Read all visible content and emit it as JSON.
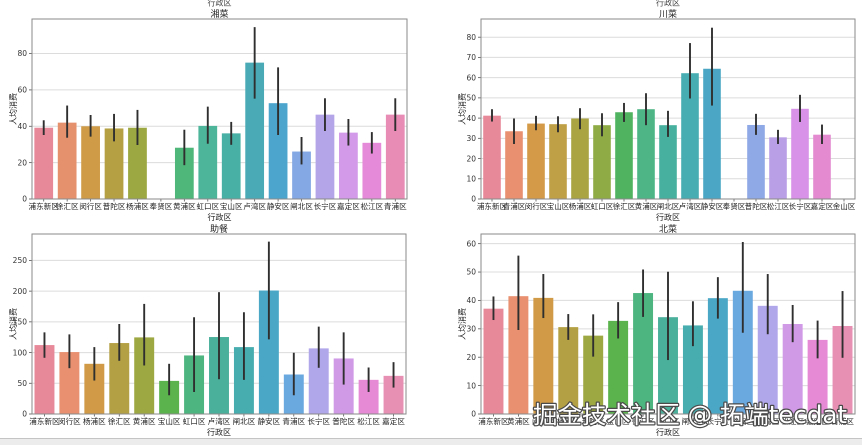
{
  "figure": {
    "cropped_above_xlabels": [
      "行政区",
      "行政区"
    ],
    "watermark": "掘金技术社区 @ 拓端tecdat"
  },
  "chart_data": [
    {
      "type": "bar",
      "title": "湘菜",
      "xlabel": "行政区",
      "ylabel": "人均消费",
      "categories": [
        "浦东新区",
        "徐汇区",
        "闵行区",
        "普陀区",
        "杨浦区",
        "奉贤区",
        "黄浦区",
        "虹口区",
        "宝山区",
        "卢湾区",
        "静安区",
        "闸北区",
        "长宁区",
        "嘉定区",
        "松江区",
        "青浦区"
      ],
      "values": [
        39.2,
        42.0,
        40.0,
        38.8,
        39.2,
        null,
        28.2,
        40.2,
        36.1,
        75.0,
        52.7,
        26.1,
        46.4,
        36.5,
        30.9,
        46.4
      ],
      "ci_low": [
        35.2,
        33.7,
        34.3,
        31.7,
        29.7,
        null,
        18.6,
        30.4,
        29.8,
        55.2,
        35.2,
        19.0,
        37.4,
        29.4,
        25.0,
        37.4
      ],
      "ci_high": [
        43.3,
        51.4,
        46.2,
        46.8,
        49.0,
        null,
        38.1,
        50.8,
        42.4,
        94.5,
        72.4,
        34.1,
        55.4,
        44.0,
        36.8,
        55.4
      ],
      "ylim": [
        0,
        99
      ],
      "yticks": [
        0,
        20,
        40,
        60,
        80
      ],
      "grid": true,
      "error_bars": true,
      "colors": [
        "#e8899a",
        "#e6916d",
        "#cf9b46",
        "#b5a043",
        "#9ca842",
        "#7fae45",
        "#4fb77a",
        "#4db59a",
        "#48b0a4",
        "#4aabb6",
        "#4ba5cd",
        "#84a8e3",
        "#b4a5e8",
        "#d29ae8",
        "#e58ad8",
        "#e88bb5"
      ]
    },
    {
      "type": "bar",
      "title": "川菜",
      "xlabel": "行政区",
      "ylabel": "人均消费",
      "categories": [
        "浦东新区",
        "青浦区",
        "闵行区",
        "宝山区",
        "杨浦区",
        "虹口区",
        "徐汇区",
        "黄浦区",
        "闸北区",
        "卢湾区",
        "静安区",
        "奉贤区",
        "普陀区",
        "松江区",
        "长宁区",
        "嘉定区",
        "金山区"
      ],
      "values": [
        41.2,
        33.5,
        37.3,
        37.0,
        39.8,
        36.5,
        42.9,
        44.4,
        36.5,
        62.2,
        64.4,
        null,
        36.6,
        30.5,
        44.6,
        31.8,
        null
      ],
      "ci_low": [
        38.3,
        27.2,
        34.0,
        33.0,
        34.5,
        31.0,
        38.1,
        36.5,
        30.7,
        49.7,
        46.2,
        null,
        31.7,
        27.2,
        38.1,
        27.2,
        null
      ],
      "ci_high": [
        44.4,
        39.8,
        41.1,
        40.9,
        44.9,
        42.4,
        47.5,
        52.3,
        43.6,
        77.1,
        84.7,
        null,
        42.1,
        34.2,
        51.5,
        36.8,
        null
      ],
      "ylim": [
        0,
        89
      ],
      "yticks": [
        0,
        10,
        20,
        30,
        40,
        50,
        60,
        70,
        80
      ],
      "grid": true,
      "error_bars": true,
      "colors": [
        "#e8899a",
        "#e8906f",
        "#d49a48",
        "#c0a046",
        "#aaa443",
        "#8fab45",
        "#4fb360",
        "#4db586",
        "#48b09e",
        "#48adb2",
        "#4aa6c4",
        "#5c9fd8",
        "#8fa8e6",
        "#b9a0e6",
        "#d892e8",
        "#e38ad0",
        "#e88ab0"
      ]
    },
    {
      "type": "bar",
      "title": "助餐",
      "xlabel": "行政区",
      "ylabel": "人均消费",
      "categories": [
        "浦东新区",
        "闵行区",
        "杨浦区",
        "徐汇区",
        "黄浦区",
        "宝山区",
        "虹口区",
        "卢湾区",
        "闸北区",
        "静安区",
        "青浦区",
        "长宁区",
        "普陀区",
        "松江区",
        "嘉定区"
      ],
      "values": [
        112.2,
        100.8,
        81.7,
        115.5,
        124.7,
        53.9,
        95.3,
        125.3,
        108.9,
        201.0,
        64.3,
        106.8,
        90.4,
        55.6,
        62.1
      ],
      "ci_low": [
        91.5,
        74.6,
        54.5,
        86.6,
        79.0,
        30.5,
        35.9,
        56.6,
        55.6,
        121.5,
        30.5,
        75.2,
        47.9,
        35.9,
        43.0
      ],
      "ci_high": [
        132.9,
        129.6,
        108.9,
        146.5,
        179.2,
        81.7,
        157.4,
        198.3,
        165.6,
        280.5,
        99.7,
        142.2,
        132.9,
        75.7,
        84.4
      ],
      "ylim": [
        0,
        293
      ],
      "yticks": [
        0,
        50,
        100,
        150,
        200,
        250
      ],
      "grid": true,
      "error_bars": true,
      "colors": [
        "#e8899a",
        "#e8906f",
        "#d09a46",
        "#b4a044",
        "#9ea842",
        "#5ab34c",
        "#4db57f",
        "#4ab09c",
        "#48adae",
        "#4aa8c6",
        "#6aa8e0",
        "#b0a6ea",
        "#d09ae6",
        "#e68ad6",
        "#e890b4"
      ]
    },
    {
      "type": "bar",
      "title": "北菜",
      "xlabel": "行政区",
      "ylabel": "人均消费",
      "categories": [
        "浦东新区",
        "黄浦区",
        "闵行区",
        "杨浦区",
        "普陀区",
        "宝山区",
        "徐汇区",
        "虹口区",
        "闸北区",
        "长宁区",
        "静安区",
        "卢湾区",
        "松江区",
        "嘉定区",
        "青浦区"
      ],
      "values": [
        37.1,
        41.5,
        40.9,
        30.6,
        27.6,
        32.8,
        42.6,
        34.1,
        31.2,
        40.8,
        43.4,
        38.1,
        31.7,
        26.1,
        31.0
      ],
      "ci_low": [
        33.1,
        29.6,
        33.8,
        26.1,
        20.2,
        26.6,
        34.2,
        19.0,
        23.9,
        33.6,
        28.6,
        28.1,
        25.3,
        19.6,
        19.8
      ],
      "ci_high": [
        41.4,
        55.8,
        49.3,
        35.2,
        35.1,
        39.4,
        50.9,
        50.1,
        39.7,
        48.2,
        60.6,
        49.3,
        38.4,
        32.9,
        43.3
      ],
      "ylim": [
        0,
        63.4
      ],
      "yticks": [
        0,
        10,
        20,
        30,
        40,
        50,
        60
      ],
      "grid": true,
      "error_bars": true,
      "colors": [
        "#e8899a",
        "#e8906f",
        "#d09a46",
        "#b4a044",
        "#9ea842",
        "#5ab34c",
        "#4db57f",
        "#4ab09c",
        "#48adae",
        "#4aa8c6",
        "#6aa8e0",
        "#b0a6ea",
        "#d09ae6",
        "#e68ad6",
        "#e890b4"
      ]
    }
  ]
}
